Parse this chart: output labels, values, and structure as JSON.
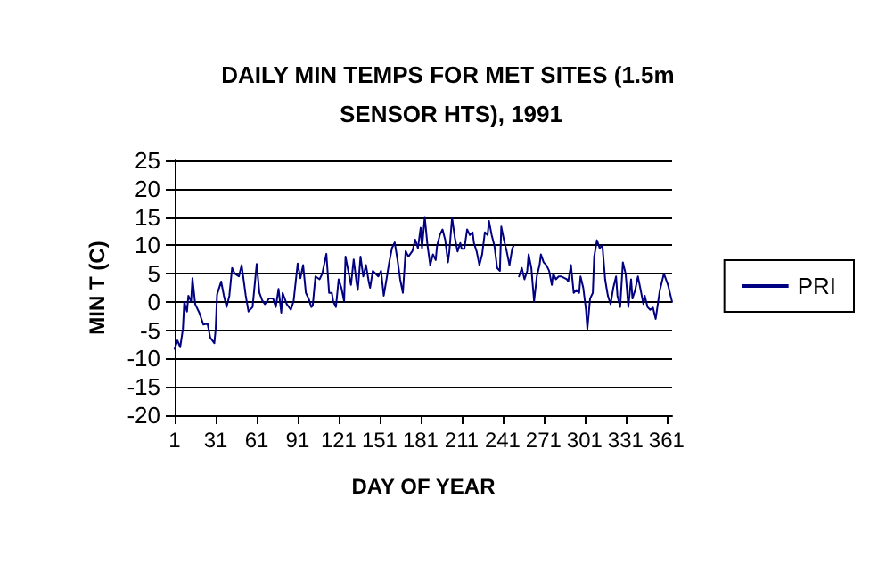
{
  "chart_data": {
    "type": "line",
    "title": "DAILY MIN TEMPS FOR MET SITES (1.5m SENSOR HTS), 1991",
    "xlabel": "DAY OF YEAR",
    "ylabel": "MIN T (C)",
    "x": [
      1,
      3,
      5,
      7,
      8,
      10,
      11,
      13,
      14,
      16,
      17,
      19,
      22,
      25,
      27,
      30,
      31,
      32,
      35,
      37,
      39,
      41,
      43,
      45,
      48,
      50,
      53,
      55,
      58,
      61,
      63,
      65,
      67,
      70,
      73,
      75,
      77,
      79,
      80,
      83,
      86,
      88,
      91,
      93,
      95,
      97,
      99,
      101,
      102,
      104,
      107,
      109,
      112,
      114,
      116,
      117,
      119,
      121,
      123,
      125,
      126,
      128,
      130,
      132,
      134,
      135,
      137,
      139,
      141,
      143,
      144,
      146,
      150,
      152,
      154,
      156,
      158,
      160,
      162,
      164,
      166,
      168,
      170,
      172,
      175,
      177,
      179,
      181,
      182,
      184,
      186,
      188,
      190,
      192,
      193,
      195,
      197,
      199,
      201,
      202,
      204,
      206,
      208,
      210,
      211,
      213,
      215,
      217,
      219,
      220,
      222,
      224,
      226,
      228,
      230,
      231,
      233,
      235,
      237,
      239,
      240,
      242,
      244,
      246,
      248,
      249,
      251,
      253,
      255,
      257,
      259,
      260,
      262,
      264,
      266,
      268,
      269,
      271,
      273,
      275,
      277,
      278,
      280,
      282,
      284,
      288,
      289,
      291,
      293,
      295,
      297,
      298,
      300,
      302,
      303,
      305,
      307,
      308,
      310,
      312,
      314,
      316,
      317,
      318,
      320,
      322,
      324,
      325,
      327,
      329,
      331,
      333,
      335,
      336,
      338,
      340,
      342,
      344,
      345,
      347,
      349,
      351,
      353,
      356,
      359,
      362,
      365
    ],
    "series": [
      {
        "name": "PRI",
        "color": "#000080",
        "values": [
          -8.3,
          -6.8,
          -8,
          -4.8,
          0,
          -1.7,
          1.1,
          0.1,
          4.2,
          -0.4,
          -0.9,
          -1.9,
          -4,
          -3.8,
          -6.3,
          -7.3,
          -4.8,
          1.3,
          3.6,
          1.1,
          -0.9,
          1.1,
          6,
          5,
          4.5,
          6.5,
          1.1,
          -1.7,
          -0.9,
          6.7,
          1.6,
          0.3,
          -0.4,
          0.6,
          0.6,
          -0.9,
          2.3,
          -1.9,
          1.6,
          -0.4,
          -1.4,
          0.1,
          6.8,
          4.2,
          6.5,
          1.6,
          0.6,
          -0.9,
          -0.7,
          4.5,
          4,
          5,
          8.5,
          1.6,
          1.6,
          0.1,
          -0.9,
          4,
          2.5,
          0.1,
          8,
          5.5,
          3,
          7.5,
          3.6,
          2.1,
          8,
          4.5,
          6.5,
          3.6,
          2.5,
          5.5,
          4.5,
          5.5,
          1.1,
          4,
          7,
          9.5,
          10.5,
          7.5,
          4,
          1.6,
          9,
          8,
          9,
          11,
          9.5,
          13.1,
          9.5,
          15,
          10,
          6.5,
          8.4,
          7.4,
          9.9,
          11.8,
          12.8,
          10.9,
          7,
          8.9,
          14.9,
          11.4,
          8.9,
          10.4,
          9.4,
          9.4,
          12.8,
          11.8,
          12.3,
          10.4,
          8.9,
          6.5,
          8.4,
          12.3,
          11.8,
          14.3,
          11.8,
          9.9,
          6,
          5.5,
          13.3,
          10.9,
          8.9,
          6.5,
          9.4,
          9.9,
          null,
          4.5,
          6,
          4,
          5.5,
          8.4,
          6,
          0.1,
          4.5,
          6.5,
          8.4,
          7,
          6.5,
          5.5,
          3,
          5,
          4,
          4.5,
          4.5,
          4,
          3.6,
          6.5,
          1.6,
          2.1,
          1.6,
          4.5,
          2.5,
          -1.4,
          -4.8,
          0.6,
          1.6,
          8,
          10.9,
          9.5,
          10,
          4,
          2.5,
          1.1,
          -0.4,
          2.5,
          4.5,
          1.1,
          -0.9,
          7,
          5,
          -0.9,
          4,
          0.6,
          2.1,
          4.5,
          2.1,
          -0.4,
          1.1,
          -0.9,
          -1.4,
          -1,
          -3,
          2,
          5,
          3,
          0
        ]
      }
    ],
    "xlim": [
      1,
      365
    ],
    "xticks": [
      1,
      31,
      61,
      91,
      121,
      151,
      181,
      211,
      241,
      271,
      301,
      331,
      361
    ],
    "ylim": [
      -20,
      25
    ],
    "yticks": [
      -20,
      -15,
      -10,
      -5,
      0,
      5,
      10,
      15,
      20,
      25
    ],
    "grid": "y",
    "legend": "right",
    "marker": "none",
    "line_style": "solid"
  }
}
